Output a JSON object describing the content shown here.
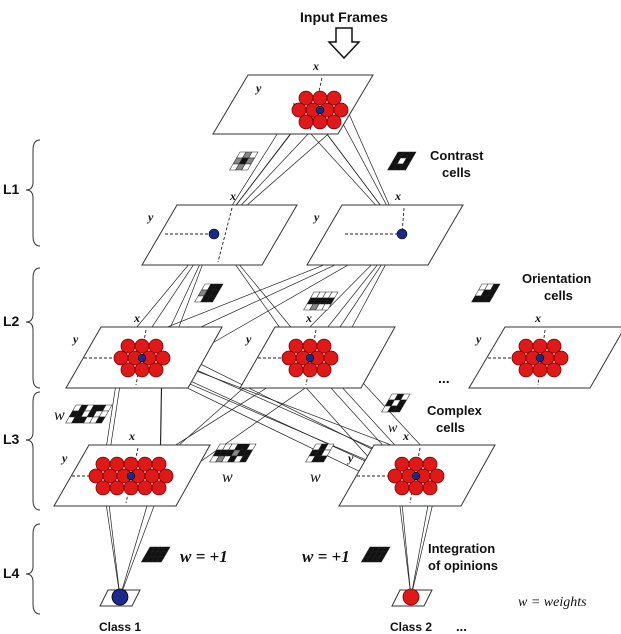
{
  "title": "Input Frames",
  "layers": [
    "L1",
    "L2",
    "L3",
    "L4"
  ],
  "axis": {
    "x": "x",
    "y": "y"
  },
  "labels": {
    "contrast_line1": "Contrast",
    "contrast_line2": "cells",
    "orientation_line1": "Orientation",
    "orientation_line2": "cells",
    "complex_line1": "Complex",
    "complex_line2": "cells",
    "integration_line1": "Integration",
    "integration_line2": "of opinions",
    "ellipsis": "...",
    "class1": "Class 1",
    "class2": "Class 2",
    "class_ellipsis": "...",
    "w": "w",
    "w_plus_left": "w = +1",
    "w_plus_right": "w = +1",
    "weights_legend": "w = weights"
  },
  "colors": {
    "neuron_red": "#e01818",
    "neuron_blue": "#1a2a8a",
    "line": "#222222"
  }
}
